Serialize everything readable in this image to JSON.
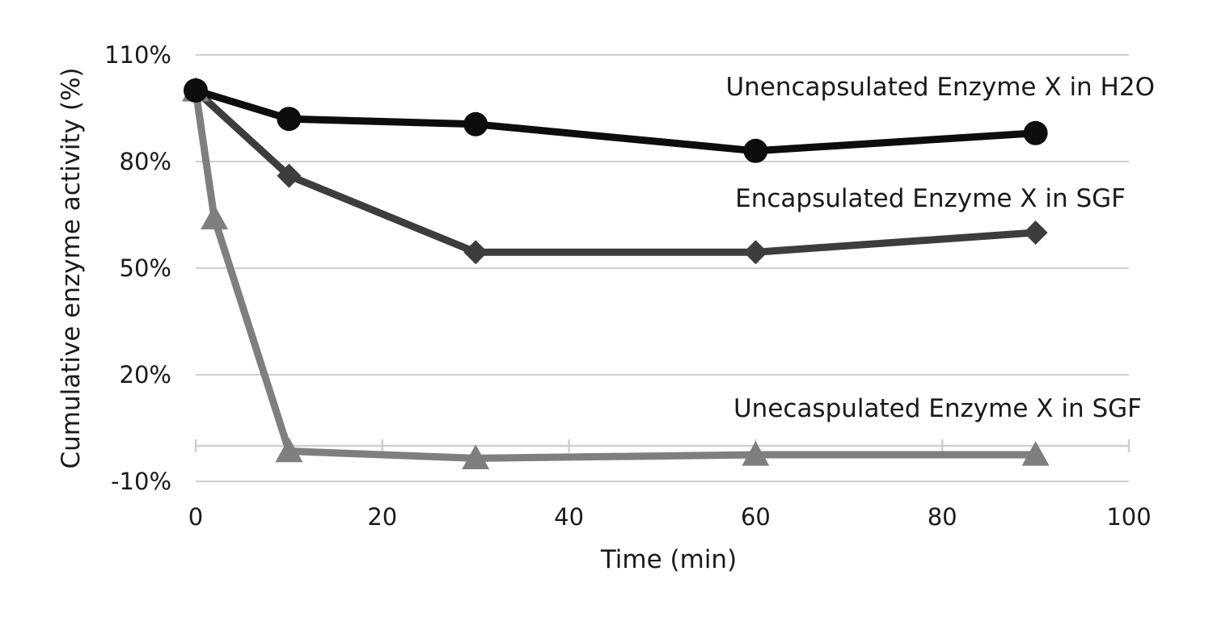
{
  "chart_data": {
    "type": "line",
    "title": "",
    "xlabel": "Time (min)",
    "ylabel": "Cumulative enzyme activity (%)",
    "xlim": [
      0,
      100
    ],
    "ylim": [
      -10,
      110
    ],
    "x_ticks": [
      "0",
      "20",
      "40",
      "60",
      "80",
      "100"
    ],
    "y_ticks": [
      "110%",
      "80%",
      "50%",
      "20%",
      "-10%"
    ],
    "x_tick_values": [
      0,
      20,
      40,
      60,
      80,
      100
    ],
    "y_tick_values": [
      110,
      80,
      50,
      20,
      -10
    ],
    "grid": true,
    "legend": "none",
    "series": [
      {
        "name": "Unencapsulated Enzyme X in H2O",
        "marker": "circle",
        "color": "#0d0d0d",
        "x": [
          0,
          10,
          30,
          60,
          90
        ],
        "y": [
          100,
          92,
          90.5,
          83,
          88
        ]
      },
      {
        "name": "Encapsulated Enzyme X in SGF",
        "marker": "diamond",
        "color": "#3d3d3d",
        "x": [
          0,
          10,
          30,
          60,
          90
        ],
        "y": [
          100,
          76,
          54.5,
          54.5,
          60
        ]
      },
      {
        "name": "Unecaspulated Enzyme X in SGF",
        "marker": "triangle",
        "color": "#7f7f7f",
        "x": [
          0,
          2,
          10,
          30,
          60,
          90
        ],
        "y": [
          100,
          64,
          -1.5,
          -3.5,
          -2.5,
          -2.5
        ]
      }
    ]
  }
}
